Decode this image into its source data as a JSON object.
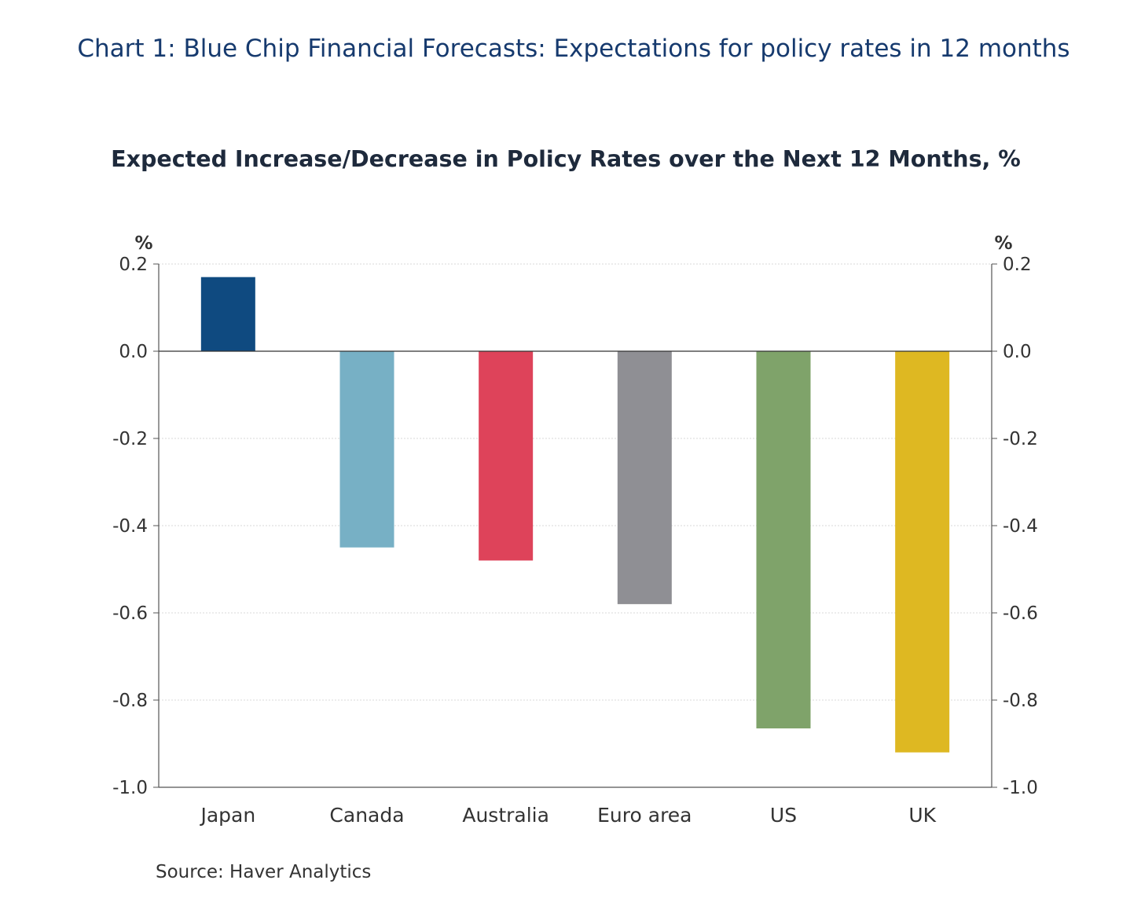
{
  "header": {
    "title": "Chart 1: Blue Chip Financial Forecasts: Expectations for policy rates in 12 months"
  },
  "chart_data": {
    "type": "bar",
    "title": "Expected Increase/Decrease in Policy Rates over the Next 12 Months, %",
    "left_unit": "%",
    "right_unit": "%",
    "categories": [
      "Japan",
      "Canada",
      "Australia",
      "Euro area",
      "US",
      "UK"
    ],
    "values": [
      0.17,
      -0.45,
      -0.48,
      -0.58,
      -0.865,
      -0.92
    ],
    "colors": [
      "#0f4a80",
      "#77b0c5",
      "#de435a",
      "#8f8f94",
      "#7fa36a",
      "#deb822"
    ],
    "ylim": [
      -1.0,
      0.2
    ],
    "yticks": [
      "0.2",
      "0.0",
      "-0.2",
      "-0.4",
      "-0.6",
      "-0.8",
      "-1.0"
    ],
    "ytick_values": [
      0.2,
      0.0,
      -0.2,
      -0.4,
      -0.6,
      -0.8,
      -1.0
    ],
    "grid": true,
    "dual_y_axis": true,
    "source": "Source:  Haver Analytics"
  }
}
